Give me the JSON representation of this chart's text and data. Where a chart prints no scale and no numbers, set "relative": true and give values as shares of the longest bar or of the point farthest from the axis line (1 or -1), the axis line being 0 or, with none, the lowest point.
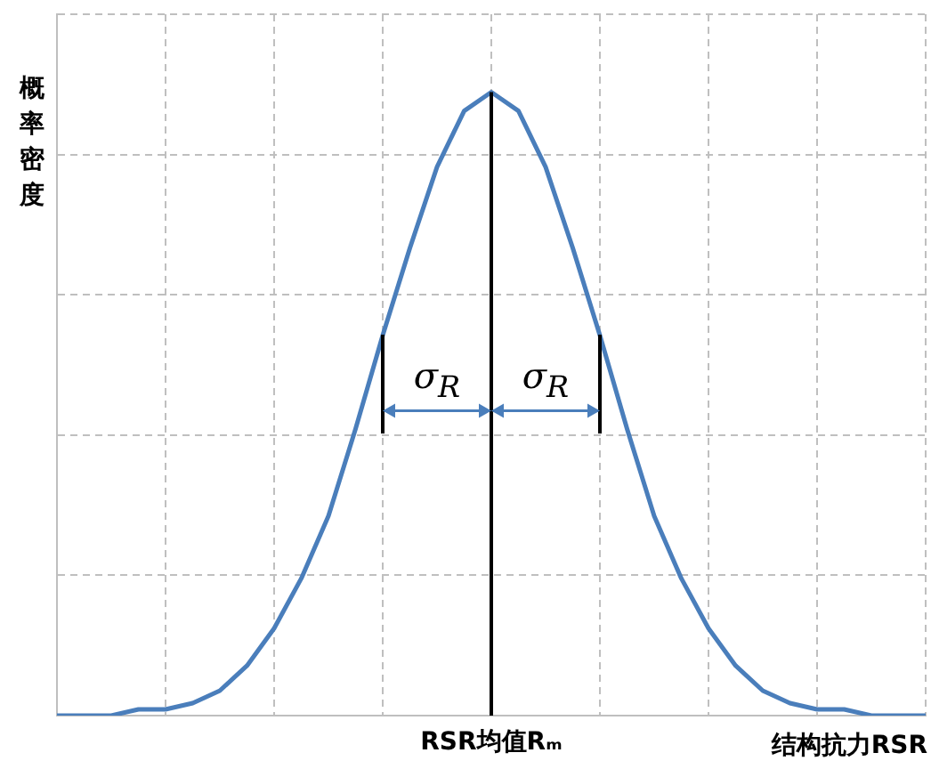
{
  "chart_data": {
    "type": "line",
    "relative": true,
    "ylabel": "概率密度",
    "xlabel": "结构抗力RSR",
    "categories": [
      null,
      null,
      null,
      null,
      null,
      null,
      null,
      null,
      null,
      null,
      null,
      null,
      null,
      null,
      null,
      null,
      null,
      null,
      null,
      null,
      null,
      null,
      null,
      null,
      null,
      null,
      null,
      null,
      null,
      null,
      null,
      null,
      null
    ],
    "values": [
      0,
      0,
      0,
      0.01,
      0.01,
      0.02,
      0.04,
      0.08,
      0.14,
      0.22,
      0.32,
      0.46,
      0.61,
      0.75,
      0.88,
      0.97,
      1,
      0.97,
      0.88,
      0.75,
      0.61,
      0.46,
      0.32,
      0.22,
      0.14,
      0.08,
      0.04,
      0.02,
      0.01,
      0.01,
      0,
      0,
      0
    ],
    "color": "#4a7ebb",
    "grid": true,
    "marker": "none",
    "line_style": "solid",
    "tick_labels": false,
    "annotations": [
      "RSR均值Rₘ",
      "σ$_{R}$",
      "σ$_{R}$"
    ]
  }
}
